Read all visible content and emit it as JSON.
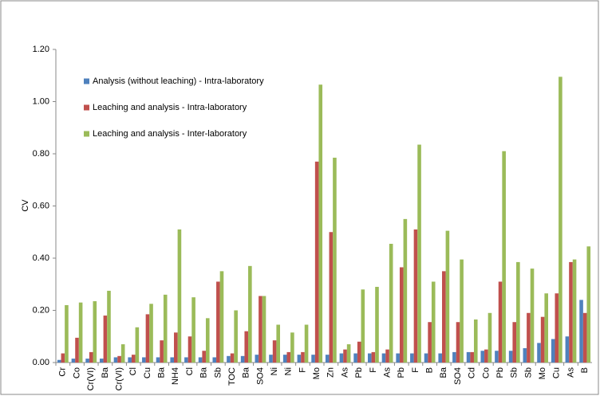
{
  "chart_data": {
    "type": "bar",
    "y_label": "CV",
    "categories": [
      "Cr",
      "Co",
      "Cr(VI)",
      "Ba",
      "Cr(VI)",
      "Cl",
      "Cu",
      "Ba",
      "NH4",
      "Cl",
      "Ba",
      "Sb",
      "TOC",
      "Ba",
      "SO4",
      "Ni",
      "Ni",
      "F",
      "Mo",
      "Zn",
      "As",
      "Pb",
      "F",
      "As",
      "Pb",
      "F",
      "B",
      "Ba",
      "SO4",
      "Cd",
      "Co",
      "Pb",
      "Sb",
      "Sb",
      "Mo",
      "Cu",
      "As",
      "B"
    ],
    "series": [
      {
        "name": "Analysis (without leaching) - Intra-laboratory",
        "color": "#4f81bd",
        "values": [
          0.01,
          0.015,
          0.015,
          0.015,
          0.02,
          0.02,
          0.02,
          0.02,
          0.02,
          0.02,
          0.02,
          0.02,
          0.025,
          0.025,
          0.03,
          0.03,
          0.03,
          0.03,
          0.03,
          0.03,
          0.035,
          0.035,
          0.035,
          0.035,
          0.035,
          0.035,
          0.035,
          0.035,
          0.04,
          0.04,
          0.045,
          0.045,
          0.045,
          0.055,
          0.075,
          0.09,
          0.1,
          0.24
        ]
      },
      {
        "name": "Leaching and analysis - Intra-laboratory",
        "color": "#c0504d",
        "values": [
          0.035,
          0.095,
          0.04,
          0.18,
          0.025,
          0.03,
          0.185,
          0.085,
          0.115,
          0.1,
          0.045,
          0.31,
          0.035,
          0.12,
          0.255,
          0.085,
          0.04,
          0.04,
          0.77,
          0.5,
          0.05,
          0.08,
          0.04,
          0.05,
          0.365,
          0.51,
          0.155,
          0.35,
          0.155,
          0.04,
          0.05,
          0.31,
          0.155,
          0.19,
          0.175,
          0.265,
          0.385,
          0.19
        ]
      },
      {
        "name": "Leaching and analysis - Inter-laboratory",
        "color": "#9bbb59",
        "values": [
          0.22,
          0.23,
          0.235,
          0.275,
          0.07,
          0.135,
          0.225,
          0.26,
          0.51,
          0.25,
          0.17,
          0.35,
          0.2,
          0.37,
          0.255,
          0.145,
          0.115,
          0.145,
          1.065,
          0.785,
          0.07,
          0.28,
          0.29,
          0.455,
          0.55,
          0.835,
          0.31,
          0.505,
          0.395,
          0.165,
          0.19,
          0.81,
          0.385,
          0.36,
          0.265,
          1.095,
          0.395,
          0.445
        ]
      }
    ],
    "ylim": [
      0,
      1.2
    ],
    "yticks": [
      {
        "value": 0,
        "label": "0.00"
      },
      {
        "value": 0.2,
        "label": "0.20"
      },
      {
        "value": 0.4,
        "label": "0.40"
      },
      {
        "value": 0.6,
        "label": "0.60"
      },
      {
        "value": 0.8,
        "label": "0.80"
      },
      {
        "value": 1.0,
        "label": "1.00"
      },
      {
        "value": 1.2,
        "label": "1.20"
      }
    ],
    "grid": false,
    "legend": "top-left"
  }
}
